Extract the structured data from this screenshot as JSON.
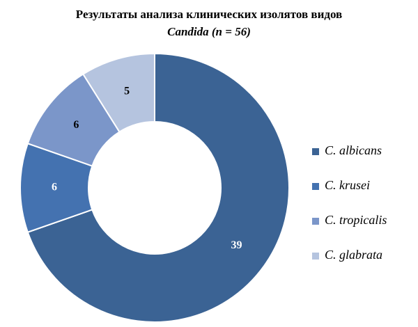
{
  "chart_data": {
    "type": "donut",
    "title": [
      "Результаты анализа клинических изолятов видов",
      "Candida (n = 56)"
    ],
    "categories": [
      "C. albicans",
      "C. krusei",
      "C. tropicalis",
      "C. glabrata"
    ],
    "values": [
      39,
      6,
      6,
      5
    ],
    "colors": [
      "#3b6394",
      "#4472b0",
      "#7b96c9",
      "#b5c4df"
    ],
    "label_colors": [
      "#ffffff",
      "#ffffff",
      "#000000",
      "#000000"
    ],
    "legend": "right"
  }
}
